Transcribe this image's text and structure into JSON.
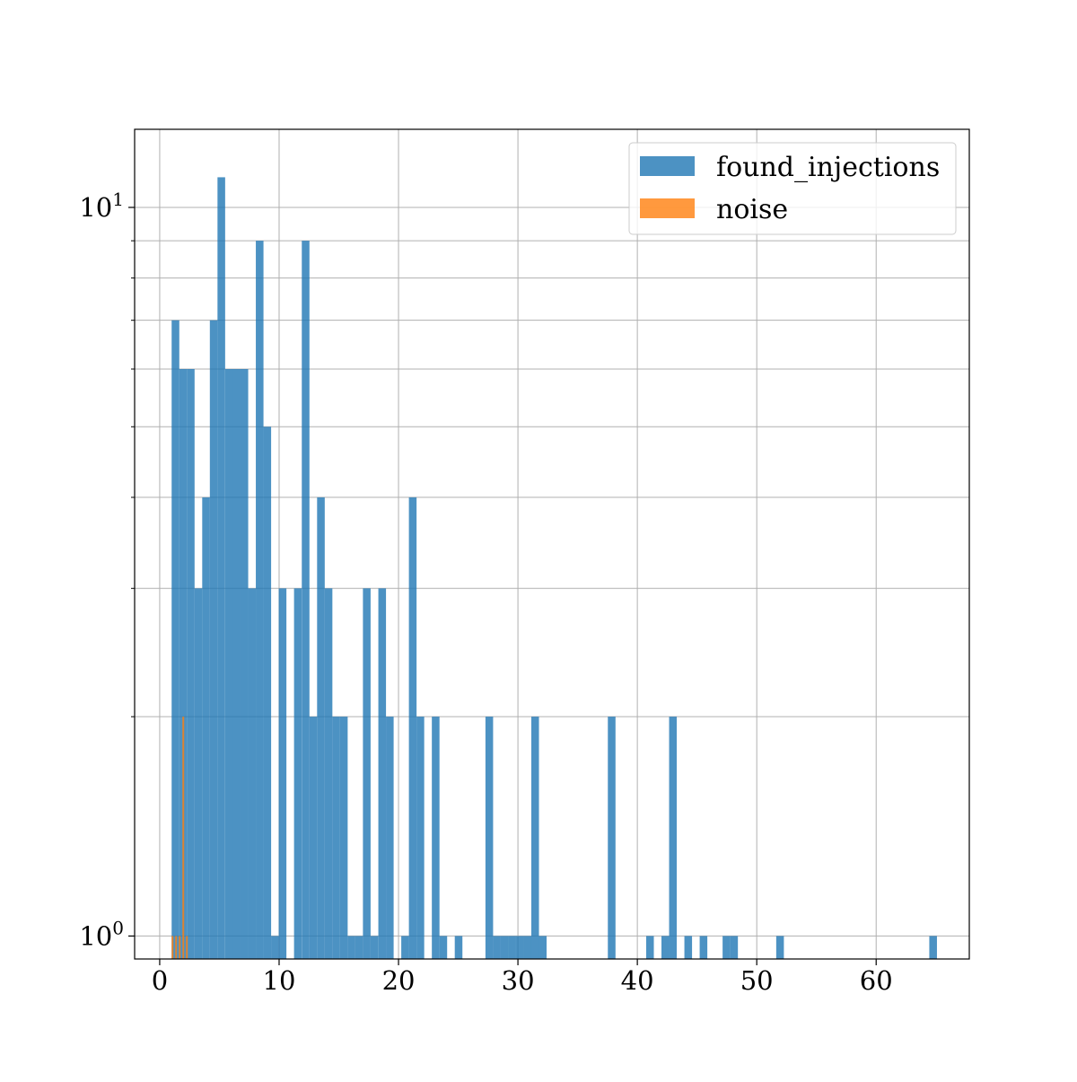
{
  "chart_data": {
    "type": "bar",
    "title": "",
    "xlabel": "",
    "ylabel": "",
    "xlim": [
      -2.1,
      67.8
    ],
    "ylim": [
      0.93,
      12.8
    ],
    "yscale": "log",
    "grid": true,
    "legend_position": "top-right",
    "bin_width": 0.641,
    "x_ticks": [
      {
        "value": 0,
        "label": "0"
      },
      {
        "value": 10,
        "label": "10"
      },
      {
        "value": 20,
        "label": "20"
      },
      {
        "value": 30,
        "label": "30"
      },
      {
        "value": 40,
        "label": "40"
      },
      {
        "value": 50,
        "label": "50"
      },
      {
        "value": 60,
        "label": "60"
      }
    ],
    "y_major_ticks": [
      {
        "value": 1,
        "base": "10",
        "exp": "0"
      },
      {
        "value": 10,
        "base": "10",
        "exp": "1"
      }
    ],
    "y_minor_ticks": [
      2,
      3,
      4,
      5,
      6,
      7,
      8,
      9
    ],
    "series": [
      {
        "name": "found_injections",
        "color": "#1f77b4",
        "opacity": 0.8,
        "bins": [
          {
            "x": 1.0,
            "count": 7
          },
          {
            "x": 1.64,
            "count": 6
          },
          {
            "x": 2.28,
            "count": 6
          },
          {
            "x": 2.92,
            "count": 3
          },
          {
            "x": 3.56,
            "count": 4
          },
          {
            "x": 4.2,
            "count": 7
          },
          {
            "x": 4.84,
            "count": 11
          },
          {
            "x": 5.49,
            "count": 6
          },
          {
            "x": 6.13,
            "count": 6
          },
          {
            "x": 6.77,
            "count": 6
          },
          {
            "x": 7.41,
            "count": 3
          },
          {
            "x": 8.05,
            "count": 9
          },
          {
            "x": 8.69,
            "count": 5
          },
          {
            "x": 9.33,
            "count": 1
          },
          {
            "x": 9.97,
            "count": 3
          },
          {
            "x": 11.25,
            "count": 3
          },
          {
            "x": 11.9,
            "count": 9
          },
          {
            "x": 12.54,
            "count": 2
          },
          {
            "x": 13.18,
            "count": 4
          },
          {
            "x": 13.82,
            "count": 3
          },
          {
            "x": 14.46,
            "count": 2
          },
          {
            "x": 15.1,
            "count": 2
          },
          {
            "x": 15.74,
            "count": 1
          },
          {
            "x": 16.38,
            "count": 1
          },
          {
            "x": 17.02,
            "count": 3
          },
          {
            "x": 17.66,
            "count": 1
          },
          {
            "x": 18.31,
            "count": 3
          },
          {
            "x": 18.95,
            "count": 2
          },
          {
            "x": 20.23,
            "count": 1
          },
          {
            "x": 20.87,
            "count": 4
          },
          {
            "x": 21.51,
            "count": 2
          },
          {
            "x": 22.79,
            "count": 2
          },
          {
            "x": 23.43,
            "count": 1
          },
          {
            "x": 24.71,
            "count": 1
          },
          {
            "x": 27.28,
            "count": 2
          },
          {
            "x": 27.92,
            "count": 1
          },
          {
            "x": 28.56,
            "count": 1
          },
          {
            "x": 29.2,
            "count": 1
          },
          {
            "x": 29.84,
            "count": 1
          },
          {
            "x": 30.48,
            "count": 1
          },
          {
            "x": 31.12,
            "count": 2
          },
          {
            "x": 31.76,
            "count": 1
          },
          {
            "x": 37.53,
            "count": 2
          },
          {
            "x": 40.74,
            "count": 1
          },
          {
            "x": 42.02,
            "count": 1
          },
          {
            "x": 42.66,
            "count": 2
          },
          {
            "x": 43.94,
            "count": 1
          },
          {
            "x": 45.22,
            "count": 1
          },
          {
            "x": 47.14,
            "count": 1
          },
          {
            "x": 47.78,
            "count": 1
          },
          {
            "x": 51.63,
            "count": 1
          },
          {
            "x": 64.45,
            "count": 1
          }
        ]
      },
      {
        "name": "noise",
        "color": "#ff7f0e",
        "opacity": 0.8,
        "bins": [
          {
            "x": 1.0,
            "count": 1
          },
          {
            "x": 1.3,
            "count": 1
          },
          {
            "x": 1.6,
            "count": 1
          },
          {
            "x": 1.9,
            "count": 2
          },
          {
            "x": 2.2,
            "count": 1
          }
        ],
        "bar_width": 0.15
      }
    ]
  }
}
